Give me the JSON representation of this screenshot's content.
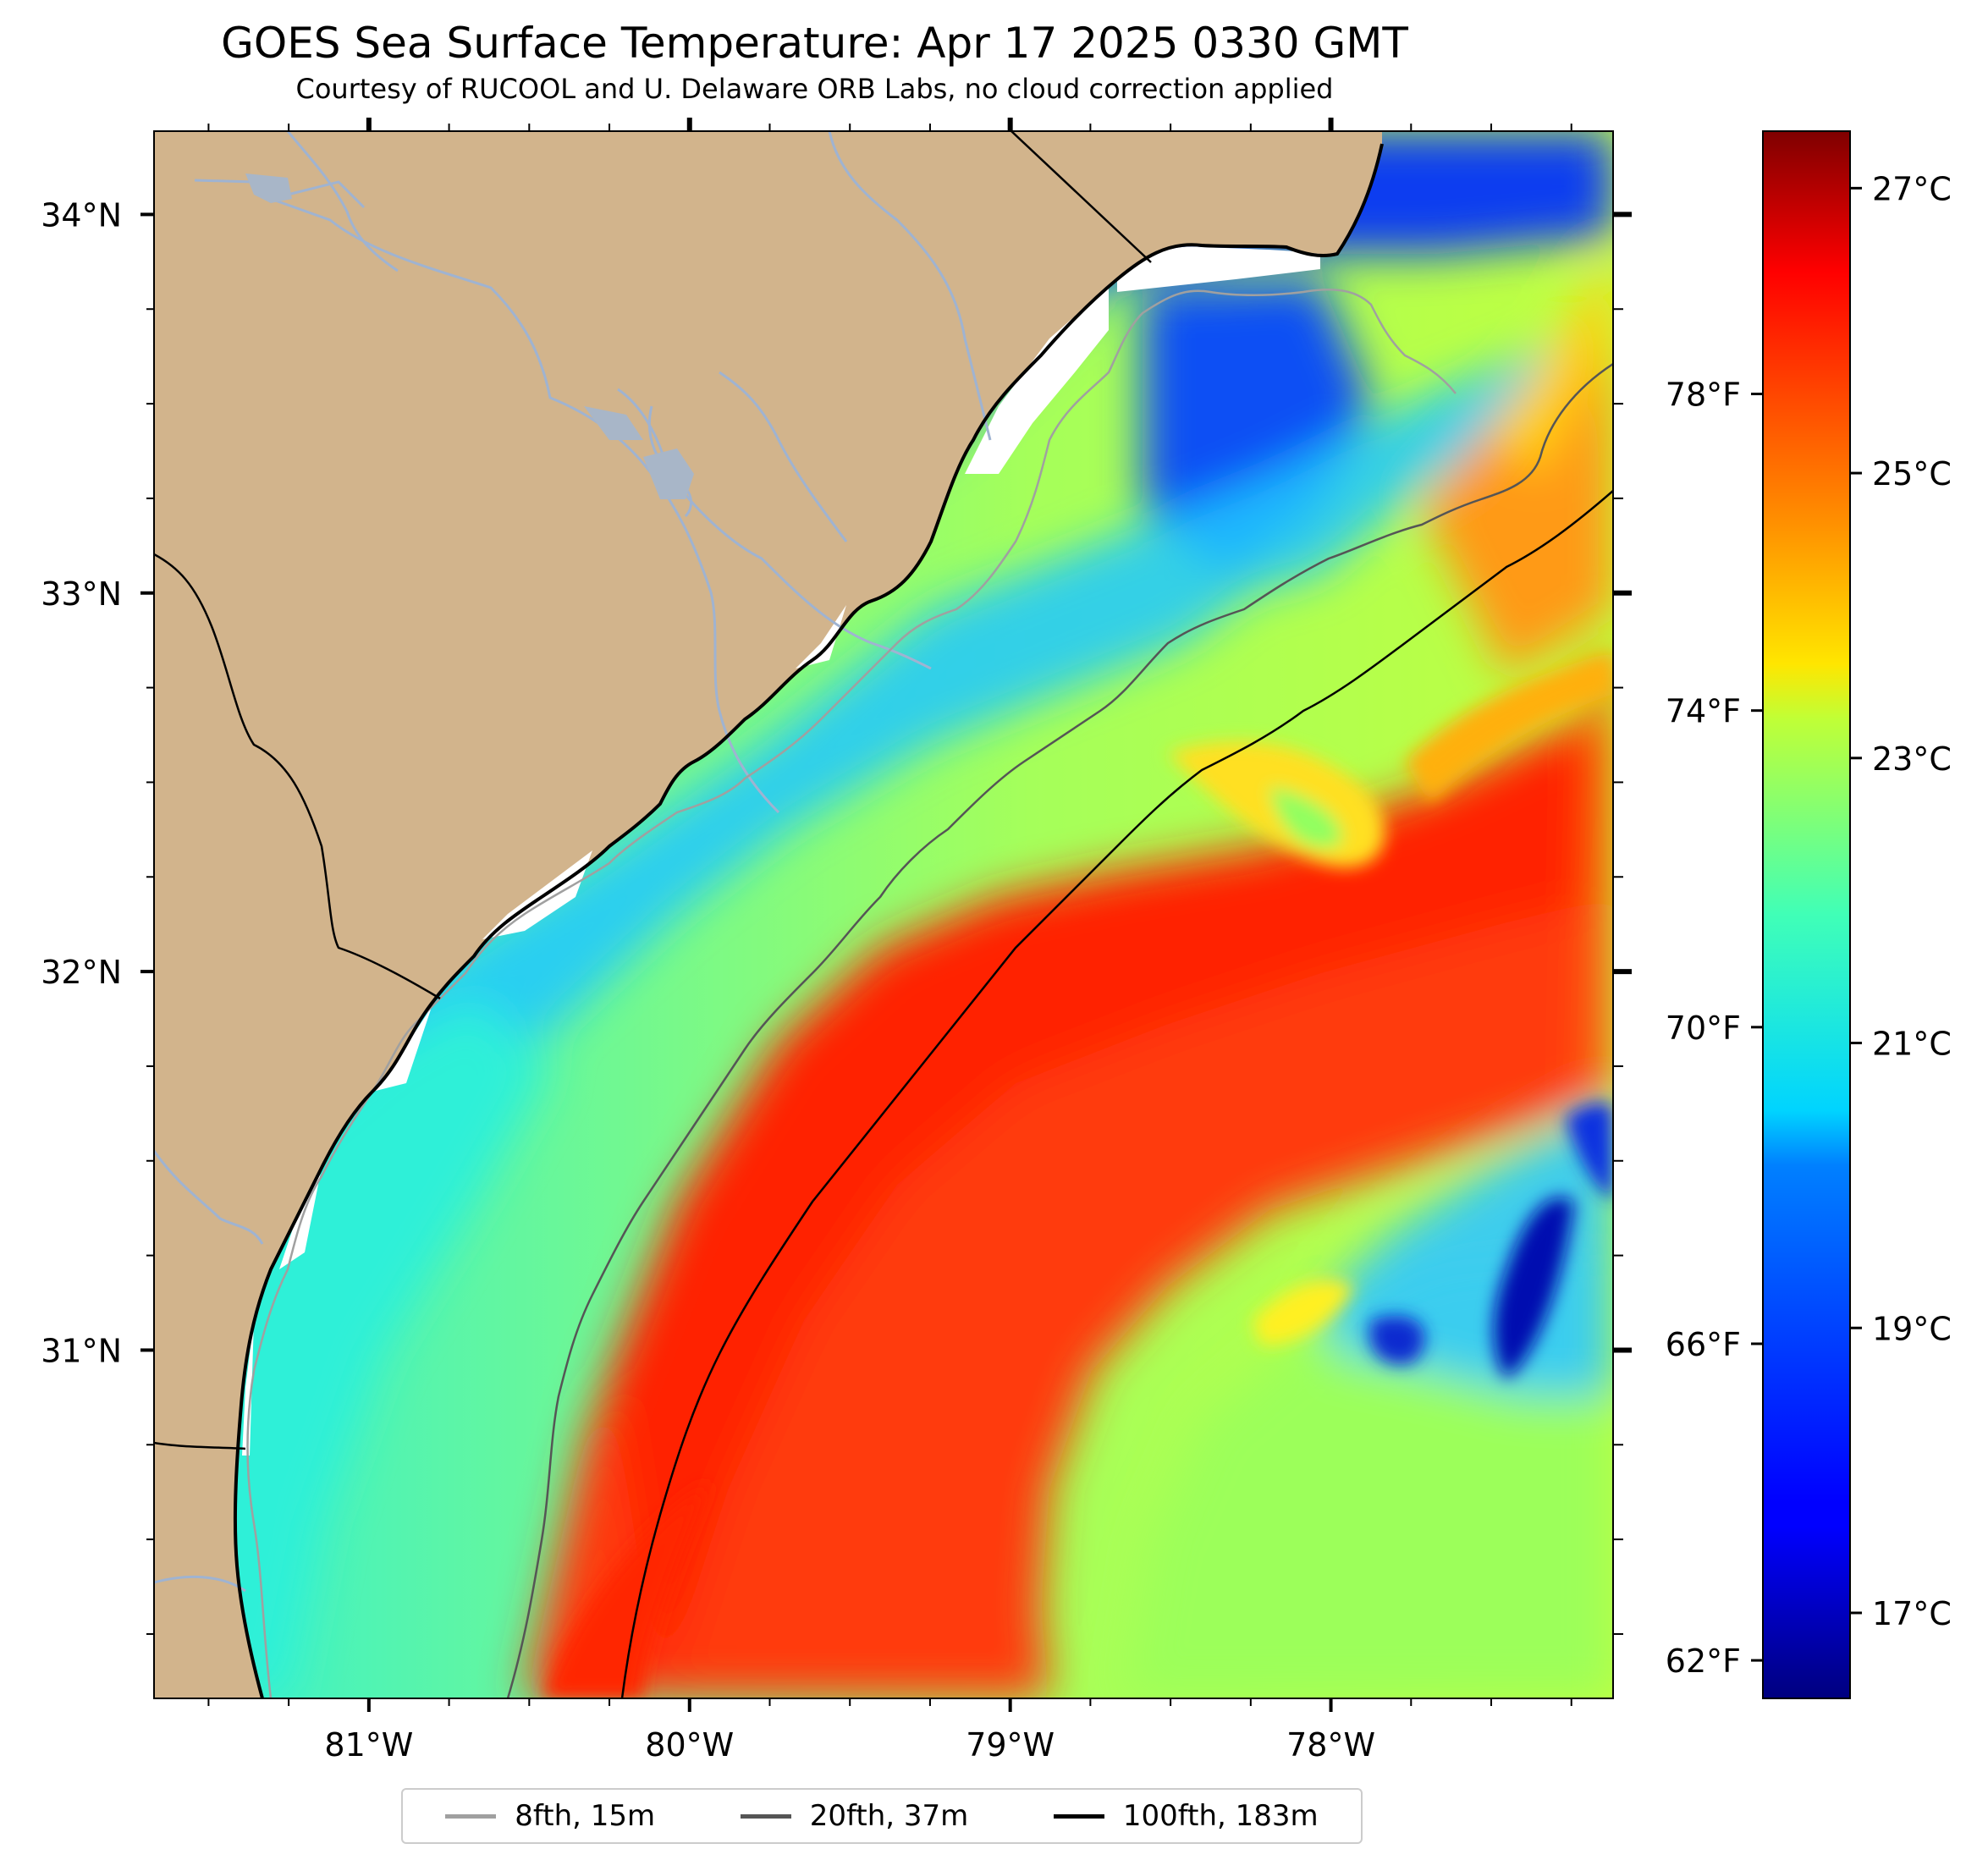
{
  "title": "GOES Sea Surface Temperature: Apr 17 2025 0330 GMT",
  "subtitle": "Courtesy of RUCOOL and U. Delaware ORB Labs, no cloud correction applied",
  "map": {
    "lon_range": [
      -81.67,
      -77.12
    ],
    "lat_range": [
      30.08,
      34.22
    ],
    "lon_ticks": [
      {
        "value": -81,
        "label": "81°W"
      },
      {
        "value": -80,
        "label": "80°W"
      },
      {
        "value": -79,
        "label": "79°W"
      },
      {
        "value": -78,
        "label": "78°W"
      }
    ],
    "lat_ticks": [
      {
        "value": 31,
        "label": "31°N"
      },
      {
        "value": 32,
        "label": "32°N"
      },
      {
        "value": 33,
        "label": "33°N"
      },
      {
        "value": 34,
        "label": "34°N"
      }
    ],
    "land_color": "#d2b48c",
    "river_color": "#9fb3d1",
    "coast_color": "#000000"
  },
  "colorbar": {
    "colormap": "jet",
    "range_c": [
      16.4,
      27.4
    ],
    "celsius_ticks": [
      {
        "value": 17,
        "label": "17°C"
      },
      {
        "value": 19,
        "label": "19°C"
      },
      {
        "value": 21,
        "label": "21°C"
      },
      {
        "value": 23,
        "label": "23°C"
      },
      {
        "value": 25,
        "label": "25°C"
      },
      {
        "value": 27,
        "label": "27°C"
      }
    ],
    "fahrenheit_ticks": [
      {
        "value": 62,
        "label": "62°F"
      },
      {
        "value": 66,
        "label": "66°F"
      },
      {
        "value": 70,
        "label": "70°F"
      },
      {
        "value": 74,
        "label": "74°F"
      },
      {
        "value": 78,
        "label": "78°F"
      }
    ]
  },
  "legend": {
    "placement": "bottom-center",
    "items": [
      {
        "label": "8fth, 15m",
        "color": "#a0a0a0"
      },
      {
        "label": "20fth, 37m",
        "color": "#555555"
      },
      {
        "label": "100fth, 183m",
        "color": "#000000"
      }
    ]
  }
}
